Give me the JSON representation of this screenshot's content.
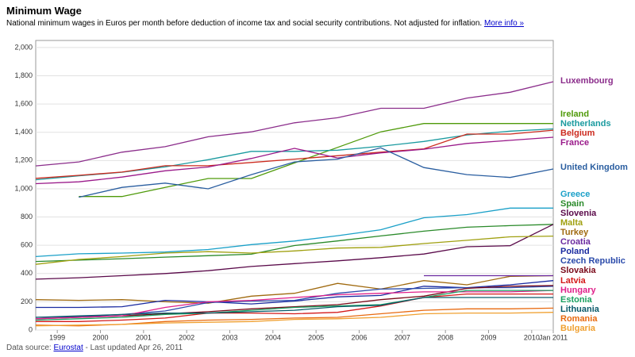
{
  "chart_data": {
    "type": "line",
    "title": "Minimum Wage",
    "subtitle": "National minimum wages in Euros per month before deduction of income tax and social security contributions. Not adjusted for inflation.",
    "more_info": "More info »",
    "source_prefix": "Data source:",
    "source_link": "Eurostat",
    "updated": "- Last updated Apr 26, 2011",
    "x": [
      1999,
      2000,
      2001,
      2002,
      2003,
      2004,
      2005,
      2006,
      2007,
      2008,
      2009,
      2010,
      2011
    ],
    "xlim": [
      1999,
      2011
    ],
    "xticks": [
      {
        "value": 1999.5,
        "label": "1999"
      },
      {
        "value": 2000.5,
        "label": "2000"
      },
      {
        "value": 2001.5,
        "label": "2001"
      },
      {
        "value": 2002.5,
        "label": "2002"
      },
      {
        "value": 2003.5,
        "label": "2003"
      },
      {
        "value": 2004.5,
        "label": "2004"
      },
      {
        "value": 2005.5,
        "label": "2005"
      },
      {
        "value": 2006.5,
        "label": "2006"
      },
      {
        "value": 2007.5,
        "label": "2007"
      },
      {
        "value": 2008.5,
        "label": "2008"
      },
      {
        "value": 2009.5,
        "label": "2009"
      },
      {
        "value": 2010.5,
        "label": "2010"
      },
      {
        "value": 2011,
        "label": "Jan 2011"
      }
    ],
    "ylim": [
      0,
      2050
    ],
    "yticks": [
      0,
      200,
      400,
      600,
      800,
      {
        "value": 1000,
        "label": "1,000"
      },
      {
        "value": 1200,
        "label": "1,200"
      },
      {
        "value": 1400,
        "label": "1,400"
      },
      {
        "value": 1600,
        "label": "1,600"
      },
      {
        "value": 1800,
        "label": "1,800"
      },
      {
        "value": 2000,
        "label": "2,000"
      }
    ],
    "grid": true,
    "series": [
      {
        "name": "Luxembourg",
        "color": "#8b2d8b",
        "values": [
          1162,
          1190,
          1259,
          1298,
          1368,
          1403,
          1467,
          1503,
          1570,
          1570,
          1642,
          1683,
          1758
        ]
      },
      {
        "name": "Ireland",
        "color": "#4f9a0a",
        "values": [
          null,
          945,
          945,
          1009,
          1073,
          1073,
          1183,
          1293,
          1403,
          1462,
          1462,
          1462,
          1462
        ]
      },
      {
        "name": "Netherlands",
        "color": "#1a9a9f",
        "values": [
          1064,
          1092,
          1117,
          1155,
          1206,
          1265,
          1265,
          1273,
          1301,
          1335,
          1381,
          1408,
          1424
        ]
      },
      {
        "name": "Belgium",
        "color": "#cc2a1e",
        "values": [
          1074,
          1095,
          1118,
          1163,
          1163,
          1186,
          1210,
          1234,
          1259,
          1283,
          1387,
          1387,
          1415
        ]
      },
      {
        "name": "France",
        "color": "#9a1a8a",
        "values": [
          1036,
          1049,
          1083,
          1127,
          1154,
          1215,
          1286,
          1218,
          1254,
          1280,
          1321,
          1343,
          1365
        ]
      },
      {
        "name": "United Kingdom",
        "color": "#2a5ea0",
        "values": [
          null,
          940,
          1010,
          1040,
          1000,
          1100,
          1190,
          1210,
          1290,
          1150,
          1100,
          1080,
          1140
        ]
      },
      {
        "name": "Greece",
        "color": "#1aa0c8",
        "values": [
          520,
          540,
          545,
          552,
          570,
          605,
          630,
          668,
          710,
          795,
          817,
          863,
          863
        ]
      },
      {
        "name": "Spain",
        "color": "#2a8a2a",
        "values": [
          485,
          495,
          505,
          516,
          526,
          537,
          598,
          631,
          666,
          700,
          728,
          739,
          748
        ]
      },
      {
        "name": "Slovenia",
        "color": "#5a0a4a",
        "values": [
          360,
          370,
          385,
          400,
          420,
          450,
          470,
          490,
          512,
          538,
          590,
          597,
          748
        ]
      },
      {
        "name": "Malta",
        "color": "#a0a010",
        "values": [
          465,
          500,
          520,
          545,
          555,
          545,
          560,
          580,
          585,
          612,
          635,
          660,
          665
        ]
      },
      {
        "name": "Turkey",
        "color": "#a06a10",
        "values": [
          215,
          210,
          215,
          200,
          190,
          240,
          260,
          330,
          290,
          350,
          320,
          380,
          385
        ]
      },
      {
        "name": "Croatia",
        "color": "#6a2aa0",
        "values": [
          null,
          null,
          null,
          null,
          null,
          null,
          null,
          null,
          null,
          385,
          385,
          385,
          385
        ]
      },
      {
        "name": "Poland",
        "color": "#1a2aa0",
        "values": [
          160,
          160,
          165,
          210,
          200,
          185,
          205,
          235,
          245,
          310,
          300,
          320,
          350
        ]
      },
      {
        "name": "Czech Republic",
        "color": "#2a4aaa",
        "values": [
          90,
          95,
          110,
          135,
          195,
          205,
          210,
          260,
          290,
          295,
          300,
          300,
          310
        ]
      },
      {
        "name": "Slovakia",
        "color": "#7a0a1a",
        "values": [
          80,
          90,
          100,
          115,
          130,
          150,
          165,
          180,
          215,
          240,
          295,
          310,
          315
        ]
      },
      {
        "name": "Latvia",
        "color": "#d41a1a",
        "values": [
          60,
          60,
          70,
          85,
          120,
          120,
          115,
          125,
          170,
          230,
          255,
          255,
          255
        ]
      },
      {
        "name": "Hungary",
        "color": "#e0208a",
        "values": [
          80,
          90,
          100,
          160,
          200,
          210,
          230,
          250,
          260,
          270,
          270,
          270,
          280
        ]
      },
      {
        "name": "Estonia",
        "color": "#1aa060",
        "values": [
          70,
          80,
          90,
          110,
          120,
          140,
          160,
          170,
          180,
          230,
          280,
          280,
          280
        ]
      },
      {
        "name": "Lithuania",
        "color": "#0a5a6a",
        "values": [
          90,
          100,
          110,
          120,
          120,
          130,
          140,
          165,
          175,
          230,
          230,
          230,
          230
        ]
      },
      {
        "name": "Romania",
        "color": "#e86a10",
        "values": [
          35,
          30,
          40,
          60,
          70,
          75,
          85,
          90,
          115,
          140,
          150,
          150,
          155
        ]
      },
      {
        "name": "Bulgaria",
        "color": "#f0a030",
        "values": [
          30,
          35,
          40,
          50,
          55,
          60,
          75,
          80,
          90,
          115,
          120,
          120,
          125
        ]
      }
    ]
  }
}
